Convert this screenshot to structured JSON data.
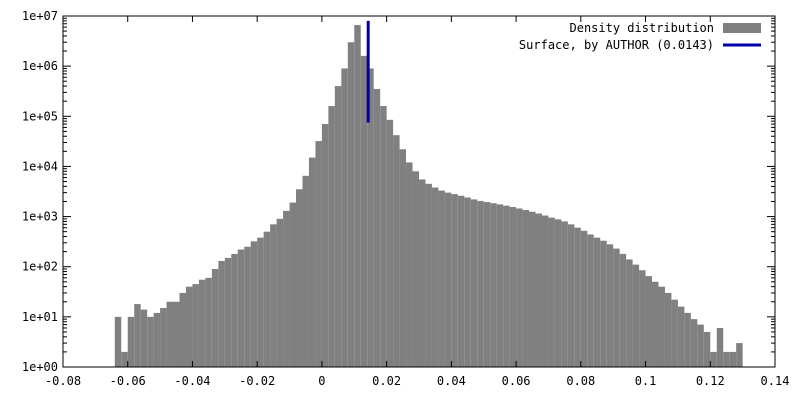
{
  "chart_data": {
    "type": "bar",
    "xlim": [
      -0.08,
      0.14
    ],
    "ylim": [
      1,
      10000000
    ],
    "yscale": "log",
    "grid": false,
    "legend_position": "top-right",
    "x_ticks": [
      "-0.08",
      "-0.06",
      "-0.04",
      "-0.02",
      "0",
      "0.02",
      "0.04",
      "0.06",
      "0.08",
      "0.1",
      "0.12",
      "0.14"
    ],
    "y_ticks": [
      "1e+00",
      "1e+01",
      "1e+02",
      "1e+03",
      "1e+04",
      "1e+05",
      "1e+06",
      "1e+07"
    ],
    "bin_width": 0.002,
    "series": [
      {
        "name": "Density distribution",
        "kind": "histogram",
        "color": "#808080",
        "bins": [
          [
            -0.063,
            10
          ],
          [
            -0.061,
            2
          ],
          [
            -0.059,
            10
          ],
          [
            -0.057,
            18
          ],
          [
            -0.055,
            14
          ],
          [
            -0.053,
            10
          ],
          [
            -0.051,
            12
          ],
          [
            -0.049,
            15
          ],
          [
            -0.047,
            20
          ],
          [
            -0.045,
            20
          ],
          [
            -0.043,
            30
          ],
          [
            -0.041,
            40
          ],
          [
            -0.039,
            45
          ],
          [
            -0.037,
            55
          ],
          [
            -0.035,
            60
          ],
          [
            -0.033,
            90
          ],
          [
            -0.031,
            130
          ],
          [
            -0.029,
            150
          ],
          [
            -0.027,
            180
          ],
          [
            -0.025,
            220
          ],
          [
            -0.023,
            250
          ],
          [
            -0.021,
            320
          ],
          [
            -0.019,
            380
          ],
          [
            -0.017,
            500
          ],
          [
            -0.015,
            700
          ],
          [
            -0.013,
            900
          ],
          [
            -0.011,
            1300
          ],
          [
            -0.009,
            1900
          ],
          [
            -0.007,
            3500
          ],
          [
            -0.005,
            6500
          ],
          [
            -0.003,
            15000
          ],
          [
            -0.001,
            32000
          ],
          [
            0.001,
            70000
          ],
          [
            0.003,
            160000
          ],
          [
            0.005,
            400000
          ],
          [
            0.007,
            900000
          ],
          [
            0.009,
            3000000
          ],
          [
            0.011,
            6600000
          ],
          [
            0.013,
            1600000
          ],
          [
            0.015,
            900000
          ],
          [
            0.017,
            350000
          ],
          [
            0.019,
            160000
          ],
          [
            0.021,
            85000
          ],
          [
            0.023,
            42000
          ],
          [
            0.025,
            22000
          ],
          [
            0.027,
            12000
          ],
          [
            0.029,
            8000
          ],
          [
            0.031,
            5500
          ],
          [
            0.033,
            4500
          ],
          [
            0.035,
            3800
          ],
          [
            0.037,
            3300
          ],
          [
            0.039,
            3000
          ],
          [
            0.041,
            2800
          ],
          [
            0.043,
            2600
          ],
          [
            0.045,
            2400
          ],
          [
            0.047,
            2200
          ],
          [
            0.049,
            2050
          ],
          [
            0.051,
            1950
          ],
          [
            0.053,
            1850
          ],
          [
            0.055,
            1750
          ],
          [
            0.057,
            1650
          ],
          [
            0.059,
            1550
          ],
          [
            0.061,
            1450
          ],
          [
            0.063,
            1350
          ],
          [
            0.065,
            1250
          ],
          [
            0.067,
            1150
          ],
          [
            0.069,
            1050
          ],
          [
            0.071,
            950
          ],
          [
            0.073,
            880
          ],
          [
            0.075,
            800
          ],
          [
            0.077,
            700
          ],
          [
            0.079,
            600
          ],
          [
            0.081,
            520
          ],
          [
            0.083,
            440
          ],
          [
            0.085,
            380
          ],
          [
            0.087,
            330
          ],
          [
            0.089,
            280
          ],
          [
            0.091,
            230
          ],
          [
            0.093,
            180
          ],
          [
            0.095,
            140
          ],
          [
            0.097,
            110
          ],
          [
            0.099,
            85
          ],
          [
            0.101,
            65
          ],
          [
            0.103,
            50
          ],
          [
            0.105,
            40
          ],
          [
            0.107,
            30
          ],
          [
            0.109,
            22
          ],
          [
            0.111,
            16
          ],
          [
            0.113,
            12
          ],
          [
            0.115,
            9
          ],
          [
            0.117,
            7
          ],
          [
            0.119,
            5
          ],
          [
            0.121,
            2
          ],
          [
            0.123,
            6
          ],
          [
            0.125,
            2
          ],
          [
            0.127,
            2
          ],
          [
            0.129,
            3
          ]
        ]
      },
      {
        "name": "Surface, by AUTHOR (0.0143)",
        "kind": "vertical-line",
        "color": "#0000aa",
        "x": 0.0143,
        "y_from": 75000,
        "y_to": 8000000
      }
    ]
  }
}
